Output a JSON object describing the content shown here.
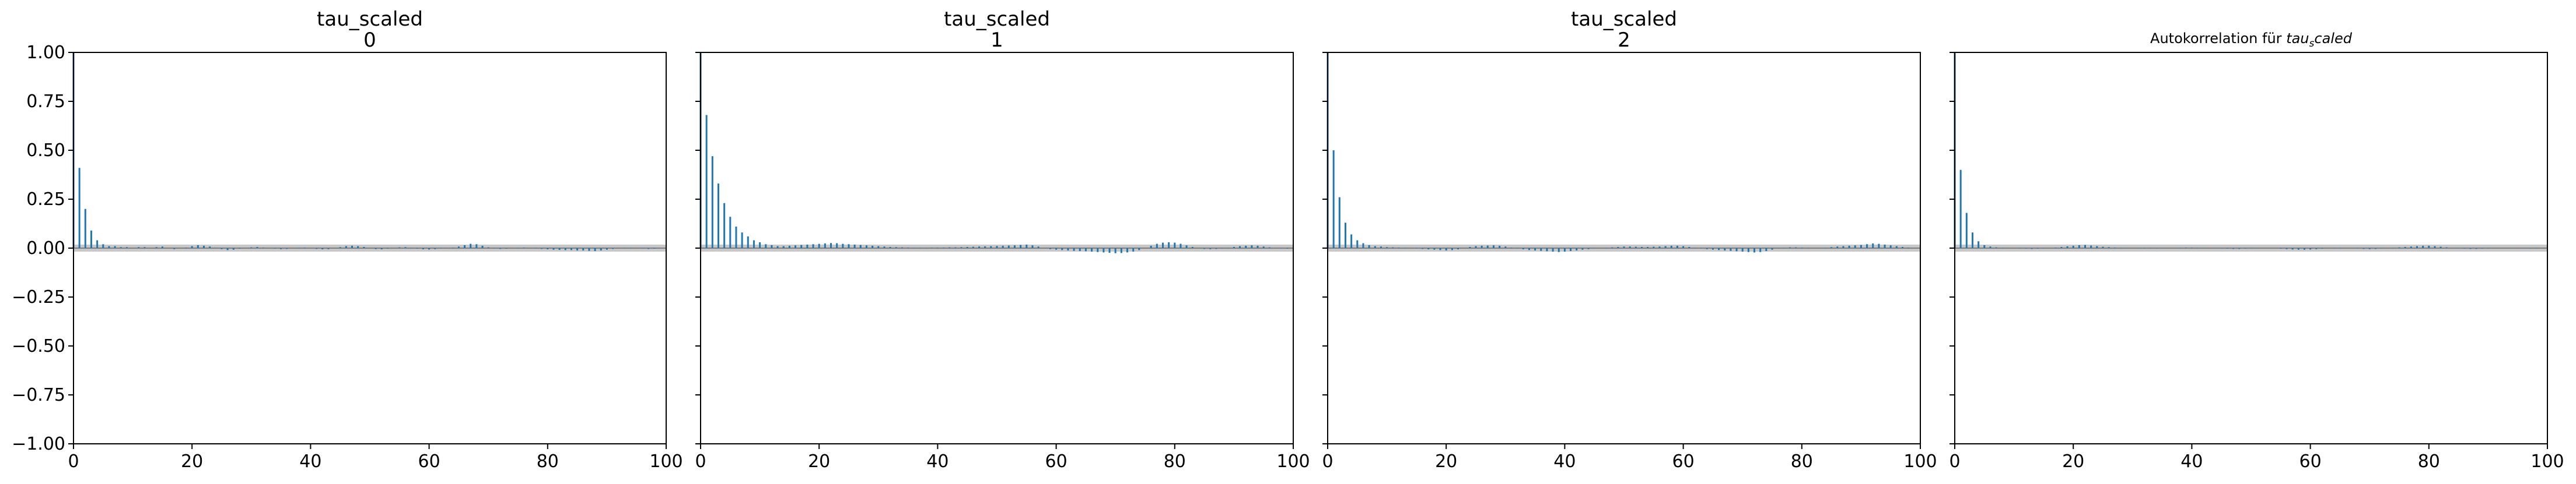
{
  "colors": {
    "bar": "#1f77b4",
    "band": "#c8c8c8",
    "axis": "#000000",
    "background": "#ffffff"
  },
  "chart_data": [
    {
      "type": "bar",
      "title": "tau_scaled",
      "subtitle": "0",
      "xlim": [
        0,
        100
      ],
      "ylim": [
        -1.0,
        1.0
      ],
      "xticks": [
        0,
        20,
        40,
        60,
        80,
        100
      ],
      "yticks": [
        "1.00",
        "0.75",
        "0.50",
        "0.25",
        "0.00",
        "−0.25",
        "−0.50",
        "−0.75",
        "−1.00"
      ],
      "show_yticklabels": true,
      "confidence_band": 0.018,
      "series": [
        {
          "values": [
            1.0,
            0.41,
            0.2,
            0.09,
            0.04,
            0.02,
            0.01,
            0.01,
            0.005,
            0.005,
            0.0,
            0.005,
            0.005,
            0.0,
            0.005,
            0.008,
            0.0,
            -0.005,
            0.0,
            0.003,
            0.01,
            0.015,
            0.012,
            0.008,
            0.002,
            -0.005,
            -0.01,
            -0.008,
            -0.003,
            0.0,
            0.004,
            0.006,
            0.003,
            0.0,
            -0.003,
            -0.005,
            -0.004,
            0.0,
            0.002,
            0.003,
            0.0,
            -0.004,
            -0.006,
            -0.005,
            0.0,
            0.005,
            0.01,
            0.012,
            0.01,
            0.006,
            0.0,
            -0.005,
            -0.006,
            -0.003,
            0.0,
            0.004,
            0.005,
            0.002,
            -0.003,
            -0.006,
            -0.007,
            -0.005,
            -0.002,
            0.0,
            0.003,
            0.008,
            0.015,
            0.022,
            0.02,
            0.012,
            0.004,
            -0.002,
            -0.004,
            -0.003,
            0.0,
            0.002,
            0.003,
            0.001,
            -0.002,
            -0.004,
            -0.006,
            -0.008,
            -0.009,
            -0.01,
            -0.01,
            -0.012,
            -0.012,
            -0.014,
            -0.015,
            -0.012,
            -0.008,
            -0.004,
            0.0,
            0.002,
            0.002,
            0.0,
            -0.002,
            -0.004,
            -0.003,
            -0.001
          ]
        }
      ]
    },
    {
      "type": "bar",
      "title": "tau_scaled",
      "subtitle": "1",
      "xlim": [
        0,
        100
      ],
      "ylim": [
        -1.0,
        1.0
      ],
      "xticks": [
        0,
        20,
        40,
        60,
        80,
        100
      ],
      "yticks": [],
      "show_yticklabels": false,
      "confidence_band": 0.018,
      "series": [
        {
          "values": [
            1.0,
            0.68,
            0.47,
            0.33,
            0.23,
            0.16,
            0.11,
            0.08,
            0.06,
            0.04,
            0.03,
            0.02,
            0.015,
            0.01,
            0.01,
            0.012,
            0.014,
            0.016,
            0.018,
            0.02,
            0.022,
            0.024,
            0.026,
            0.025,
            0.022,
            0.02,
            0.018,
            0.016,
            0.014,
            0.012,
            0.01,
            0.008,
            0.006,
            0.005,
            0.004,
            0.003,
            0.002,
            0.002,
            0.002,
            0.003,
            0.003,
            0.003,
            0.004,
            0.004,
            0.005,
            0.006,
            0.007,
            0.008,
            0.009,
            0.01,
            0.011,
            0.012,
            0.013,
            0.014,
            0.016,
            0.018,
            0.014,
            0.008,
            0.0,
            -0.005,
            -0.008,
            -0.01,
            -0.012,
            -0.014,
            -0.015,
            -0.016,
            -0.018,
            -0.02,
            -0.022,
            -0.024,
            -0.026,
            -0.025,
            -0.022,
            -0.018,
            -0.01,
            0.0,
            0.012,
            0.022,
            0.028,
            0.03,
            0.028,
            0.022,
            0.014,
            0.006,
            0.0,
            -0.004,
            -0.005,
            -0.004,
            -0.002,
            0.002,
            0.006,
            0.01,
            0.012,
            0.014,
            0.012,
            0.008,
            0.004,
            0.0,
            -0.002,
            -0.003,
            -0.002
          ]
        }
      ]
    },
    {
      "type": "bar",
      "title": "tau_scaled",
      "subtitle": "2",
      "xlim": [
        0,
        100
      ],
      "ylim": [
        -1.0,
        1.0
      ],
      "xticks": [
        0,
        20,
        40,
        60,
        80,
        100
      ],
      "yticks": [],
      "show_yticklabels": false,
      "confidence_band": 0.018,
      "series": [
        {
          "values": [
            1.0,
            0.5,
            0.26,
            0.13,
            0.07,
            0.04,
            0.025,
            0.015,
            0.01,
            0.008,
            0.005,
            0.004,
            0.003,
            0.002,
            0.0,
            -0.002,
            -0.004,
            -0.006,
            -0.008,
            -0.01,
            -0.012,
            -0.01,
            -0.006,
            0.0,
            0.006,
            0.01,
            0.012,
            0.013,
            0.014,
            0.012,
            0.008,
            0.003,
            -0.002,
            -0.006,
            -0.01,
            -0.012,
            -0.014,
            -0.016,
            -0.018,
            -0.02,
            -0.018,
            -0.015,
            -0.012,
            -0.008,
            -0.005,
            -0.002,
            0.0,
            0.002,
            0.004,
            0.006,
            0.008,
            0.008,
            0.007,
            0.006,
            0.006,
            0.007,
            0.008,
            0.01,
            0.012,
            0.012,
            0.01,
            0.006,
            0.002,
            -0.002,
            -0.005,
            -0.008,
            -0.01,
            -0.012,
            -0.014,
            -0.016,
            -0.018,
            -0.02,
            -0.022,
            -0.02,
            -0.015,
            -0.008,
            -0.002,
            0.002,
            0.004,
            0.004,
            0.003,
            0.002,
            0.001,
            0.0,
            0.002,
            0.005,
            0.008,
            0.01,
            0.012,
            0.014,
            0.016,
            0.02,
            0.024,
            0.022,
            0.018,
            0.014,
            0.01,
            0.006,
            0.003,
            0.001,
            0.0
          ]
        }
      ]
    },
    {
      "type": "bar",
      "title": "Autokorrelation für ",
      "title_math": "tau",
      "title_math_sub": "s",
      "title_math_tail": "caled",
      "xlim": [
        0,
        100
      ],
      "ylim": [
        -1.0,
        1.0
      ],
      "xticks": [
        0,
        20,
        40,
        60,
        80,
        100
      ],
      "yticks": [],
      "show_yticklabels": false,
      "confidence_band": 0.018,
      "series": [
        {
          "values": [
            1.0,
            0.4,
            0.18,
            0.08,
            0.035,
            0.015,
            0.008,
            0.004,
            0.002,
            0.001,
            0.0,
            -0.002,
            -0.003,
            -0.004,
            -0.003,
            -0.002,
            0.0,
            0.003,
            0.006,
            0.009,
            0.012,
            0.015,
            0.016,
            0.013,
            0.01,
            0.007,
            0.005,
            0.003,
            0.002,
            0.001,
            0.0,
            -0.001,
            -0.002,
            -0.002,
            -0.002,
            -0.001,
            0.0,
            0.001,
            0.002,
            0.003,
            0.003,
            0.002,
            0.001,
            0.0,
            -0.001,
            -0.002,
            -0.003,
            -0.004,
            -0.004,
            -0.003,
            -0.002,
            -0.001,
            0.0,
            0.0,
            -0.001,
            -0.003,
            -0.005,
            -0.007,
            -0.008,
            -0.008,
            -0.007,
            -0.005,
            -0.003,
            0.0,
            0.002,
            0.002,
            0.001,
            0.0,
            -0.002,
            -0.004,
            -0.005,
            -0.004,
            -0.002,
            0.0,
            0.002,
            0.004,
            0.006,
            0.008,
            0.01,
            0.012,
            0.012,
            0.01,
            0.007,
            0.004,
            0.001,
            -0.001,
            -0.003,
            -0.004,
            -0.004,
            -0.003,
            -0.002,
            -0.001,
            0.0,
            0.001,
            0.001,
            0.0,
            -0.001,
            -0.002,
            -0.002,
            -0.001,
            0.0
          ]
        }
      ]
    }
  ]
}
